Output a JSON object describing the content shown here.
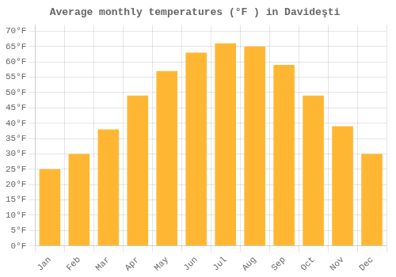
{
  "chart_data": {
    "type": "bar",
    "title": "Average monthly temperatures (°F ) in Davideşti",
    "categories": [
      "Jan",
      "Feb",
      "Mar",
      "Apr",
      "May",
      "Jun",
      "Jul",
      "Aug",
      "Sep",
      "Oct",
      "Nov",
      "Dec"
    ],
    "values": [
      25,
      30,
      38,
      49,
      57,
      63,
      66,
      65,
      59,
      49,
      39,
      30
    ],
    "color": "#FFB733",
    "ylim": [
      0,
      72
    ],
    "yticks": [
      {
        "value": 0,
        "label": "0°F"
      },
      {
        "value": 5,
        "label": "5°F"
      },
      {
        "value": 10,
        "label": "10°F"
      },
      {
        "value": 15,
        "label": "15°F"
      },
      {
        "value": 20,
        "label": "20°F"
      },
      {
        "value": 25,
        "label": "25°F"
      },
      {
        "value": 30,
        "label": "30°F"
      },
      {
        "value": 35,
        "label": "35°F"
      },
      {
        "value": 40,
        "label": "40°F"
      },
      {
        "value": 45,
        "label": "45°F"
      },
      {
        "value": 50,
        "label": "50°F"
      },
      {
        "value": 55,
        "label": "55°F"
      },
      {
        "value": 60,
        "label": "60°F"
      },
      {
        "value": 65,
        "label": "65°F"
      },
      {
        "value": 70,
        "label": "70°F"
      }
    ],
    "grid": true
  }
}
